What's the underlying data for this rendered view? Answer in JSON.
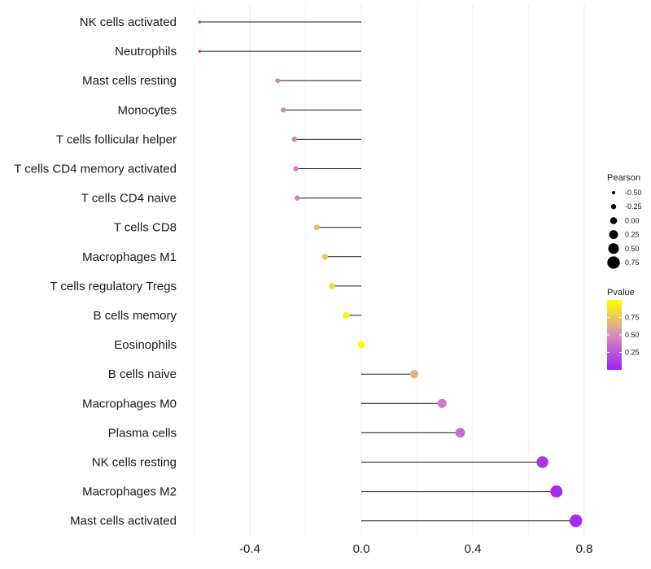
{
  "chart_data": {
    "type": "lollipop",
    "categories": [
      "NK cells activated",
      "Neutrophils",
      "Mast cells resting",
      "Monocytes",
      "T cells follicular helper",
      "T cells CD4 memory activated",
      "T cells CD4 naive",
      "T cells CD8",
      "Macrophages M1",
      "T cells regulatory  Tregs",
      "B cells memory",
      "Eosinophils",
      "B cells naive",
      "Macrophages M0",
      "Plasma cells",
      "NK cells resting",
      "Macrophages M2",
      "Mast cells activated"
    ],
    "pearson": [
      -0.58,
      -0.58,
      -0.3,
      -0.28,
      -0.24,
      -0.235,
      -0.23,
      -0.16,
      -0.13,
      -0.105,
      -0.055,
      0.0,
      0.19,
      0.29,
      0.355,
      0.65,
      0.7,
      0.77
    ],
    "pvalue": [
      0.05,
      0.05,
      0.45,
      0.45,
      0.45,
      0.45,
      0.45,
      0.7,
      0.75,
      0.85,
      0.95,
      1.0,
      0.65,
      0.4,
      0.35,
      0.1,
      0.05,
      0.05
    ],
    "x_ticks": [
      -0.4,
      0.0,
      0.4,
      0.8
    ],
    "x_tick_labels": [
      "-0.4",
      "0.0",
      "0.4",
      "0.8"
    ],
    "xlim": [
      -0.61,
      0.81
    ],
    "legend_size": {
      "title": "Pearson",
      "values": [
        -0.5,
        -0.25,
        0.0,
        0.25,
        0.5,
        0.75
      ],
      "labels": [
        "-0.50",
        "-0.25",
        "0.00",
        "0.25",
        "0.50",
        "0.75"
      ]
    },
    "legend_color": {
      "title": "Pvalue",
      "ticks": [
        0.25,
        0.5,
        0.75
      ],
      "labels": [
        "0.25",
        "0.50",
        "0.75"
      ],
      "range": [
        0.0,
        1.0
      ],
      "low_color": "#a020f0",
      "mid_color": "#d58fba",
      "high_color": "#ffff00"
    },
    "grid": true,
    "legend_position": "right"
  }
}
